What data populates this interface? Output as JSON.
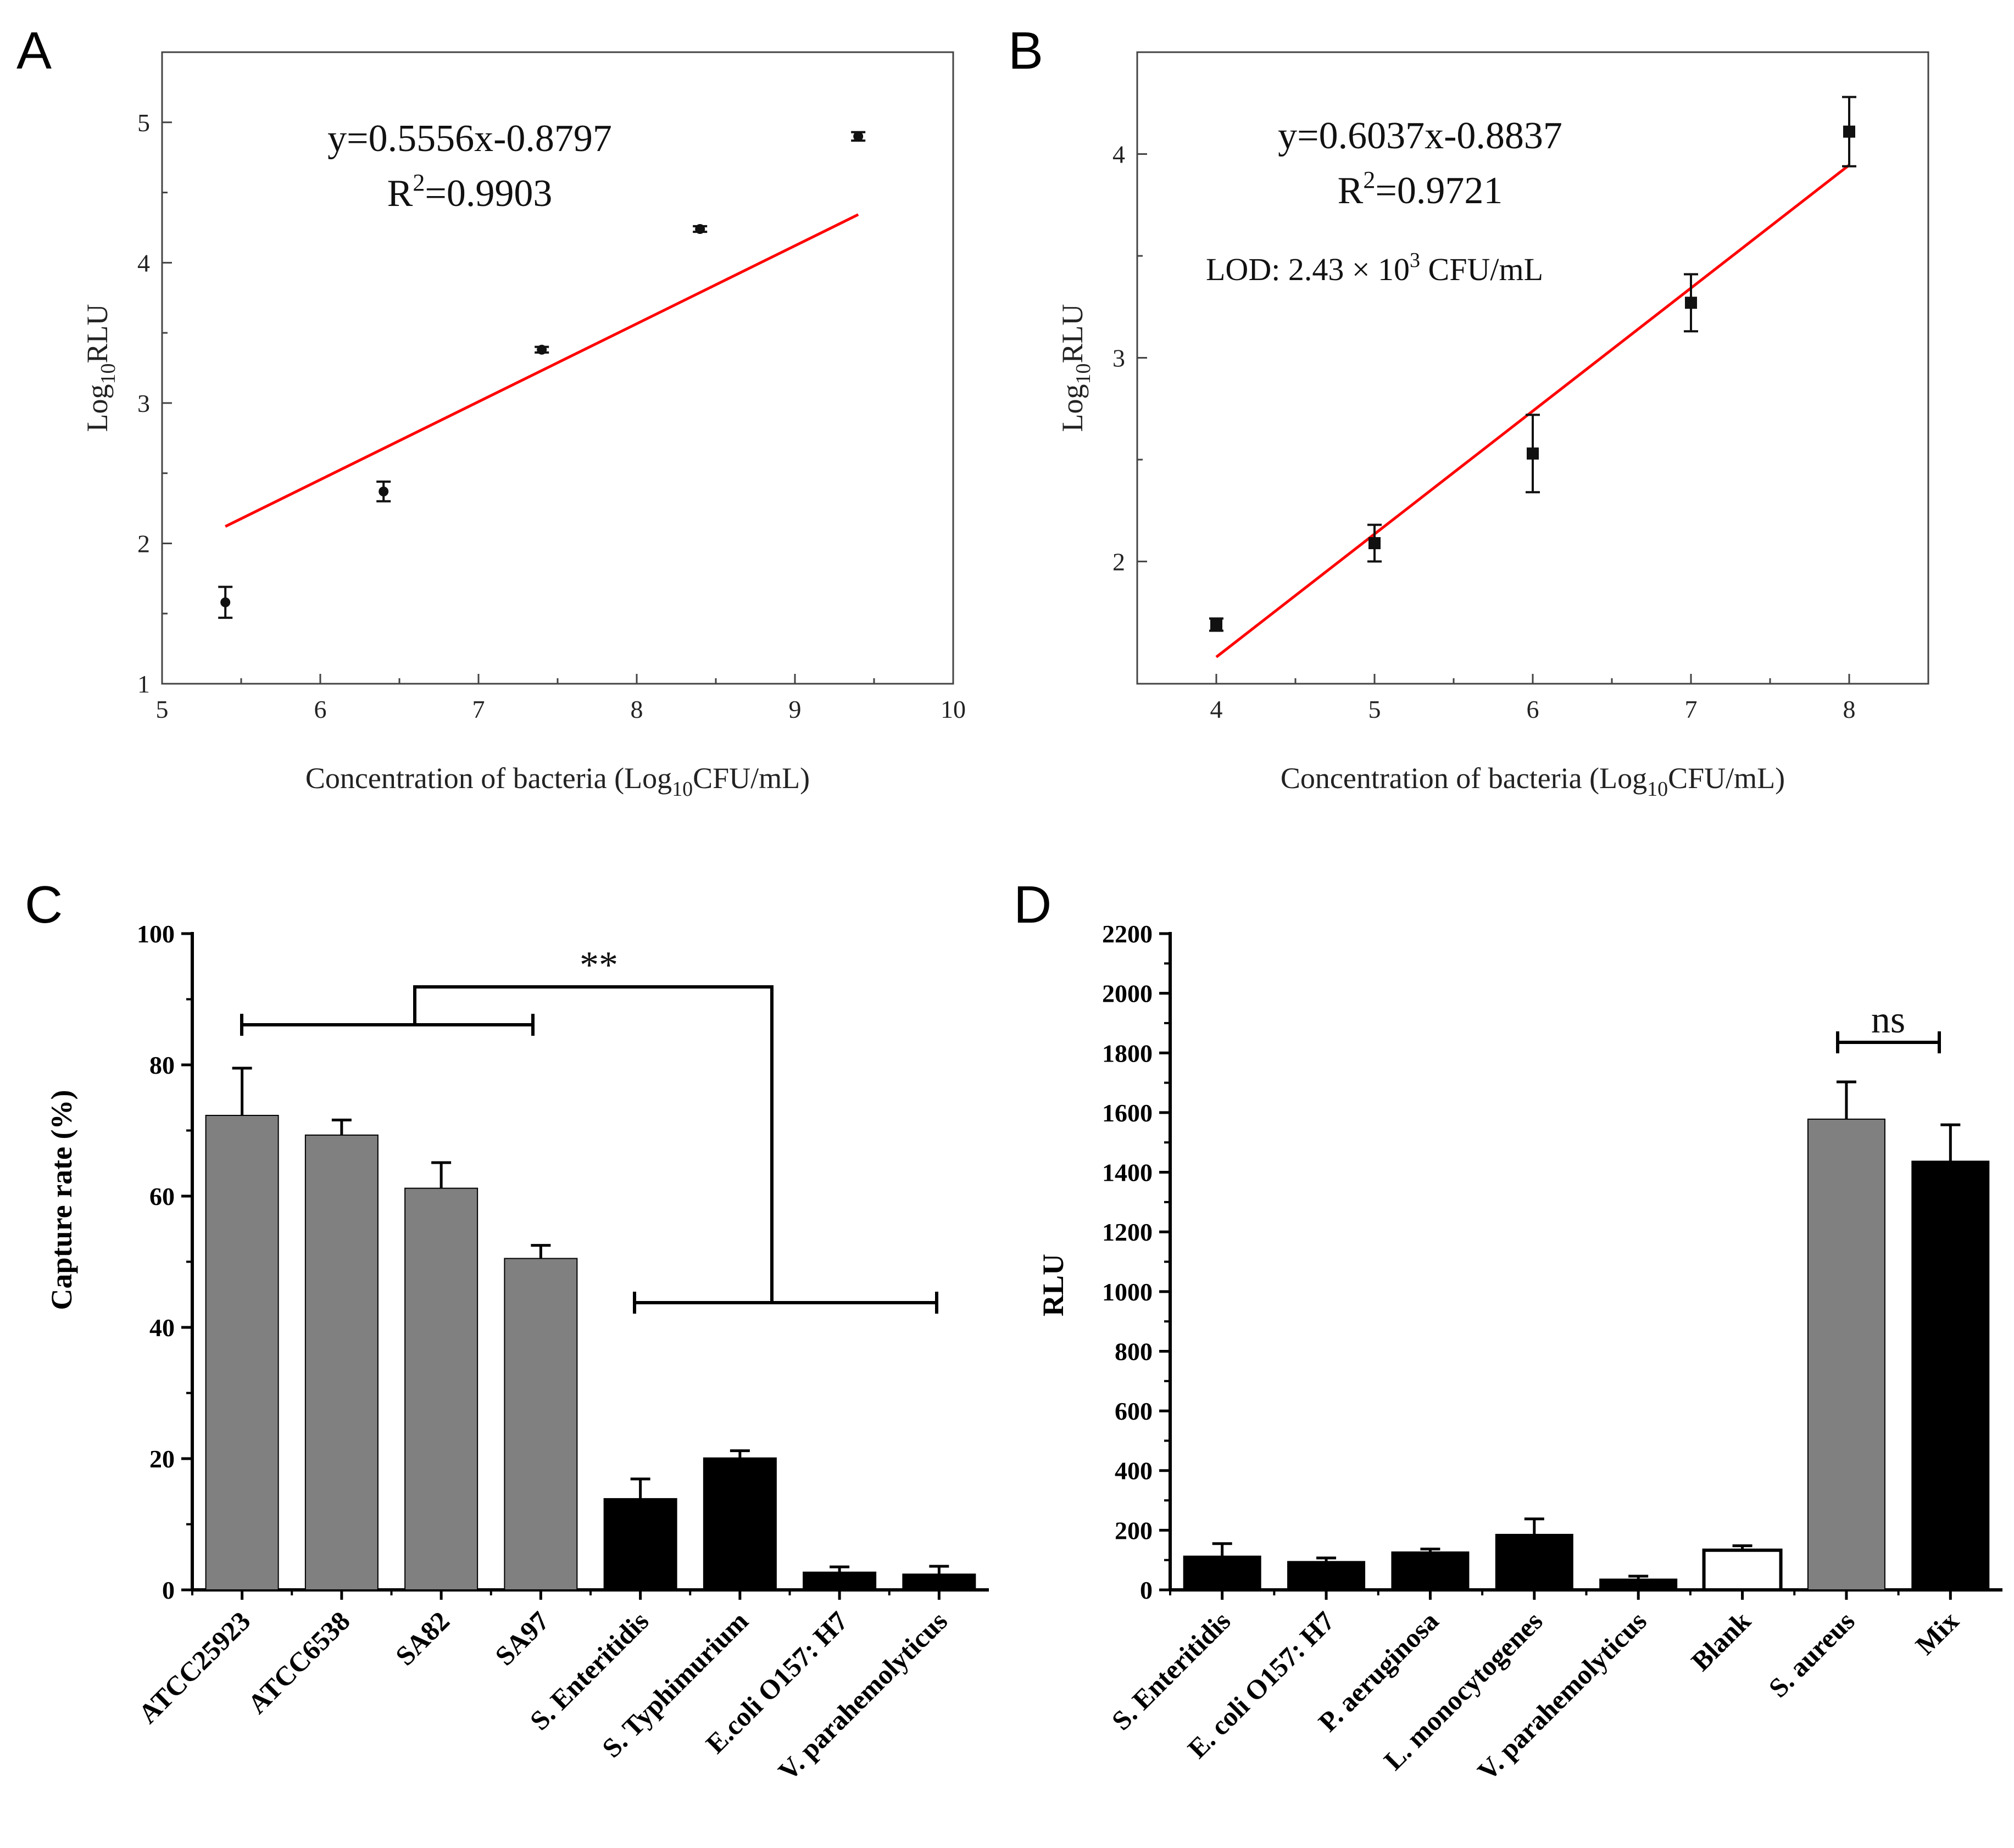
{
  "chart_data": [
    {
      "id": "A",
      "panel_label": "A",
      "type": "scatter",
      "x": [
        5.4,
        6.4,
        7.4,
        8.4,
        9.4
      ],
      "y": [
        1.58,
        2.37,
        3.38,
        4.24,
        4.9
      ],
      "yerr": [
        0.11,
        0.07,
        0.02,
        0.02,
        0.03
      ],
      "fit": {
        "slope": 0.5556,
        "intercept": -0.8797,
        "color": "#ff0000"
      },
      "equation": "y=0.5556x-0.8797",
      "r2_prefix": "R",
      "r2_sup": "2",
      "r2_value": "=0.9903",
      "xlim": [
        5,
        10
      ],
      "ylim": [
        1,
        5.5
      ],
      "xticks": [
        "5",
        "6",
        "7",
        "8",
        "9",
        "10"
      ],
      "yticks": [
        "1",
        "2",
        "3",
        "4",
        "5"
      ],
      "xlabel": {
        "main": "Concentration of bacteria (Log",
        "sub": "10",
        "tail": "CFU/mL)"
      },
      "ylabel": {
        "main": "Log",
        "sub": "10",
        "tail": "RLU"
      },
      "marker": "circle",
      "marker_color": "#111111"
    },
    {
      "id": "B",
      "panel_label": "B",
      "type": "scatter",
      "x": [
        4,
        5,
        6,
        7,
        8
      ],
      "y": [
        1.69,
        2.09,
        2.53,
        3.27,
        4.11
      ],
      "yerr": [
        0.03,
        0.09,
        0.19,
        0.14,
        0.17
      ],
      "fit": {
        "slope": 0.6037,
        "intercept": -0.8837,
        "color": "#ff0000"
      },
      "equation": "y=0.6037x-0.8837",
      "r2_prefix": "R",
      "r2_sup": "2",
      "r2_value": "=0.9721",
      "lod_text": "LOD: 2.43 × 10",
      "lod_sup": "3",
      "lod_unit": " CFU/mL",
      "xlim": [
        3.5,
        8.5
      ],
      "ylim": [
        1.4,
        4.5
      ],
      "xticks": [
        "4",
        "5",
        "6",
        "7",
        "8"
      ],
      "yticks": [
        "2",
        "3",
        "4"
      ],
      "xlabel": {
        "main": "Concentration of bacteria (Log",
        "sub": "10",
        "tail": "CFU/mL)"
      },
      "ylabel": {
        "main": "Log",
        "sub": "10",
        "tail": "RLU"
      },
      "marker": "square",
      "marker_color": "#111111"
    },
    {
      "id": "C",
      "panel_label": "C",
      "type": "bar",
      "categories": [
        "ATCC25923",
        "ATCC6538",
        "SA82",
        "SA97",
        "S. Enteritidis",
        "S. Typhimurium",
        "E.coli O157: H7",
        "V. parahemolyticus"
      ],
      "values": [
        72.3,
        69.3,
        61.2,
        50.5,
        13.9,
        20.1,
        2.7,
        2.4
      ],
      "errors": [
        7.2,
        2.3,
        3.9,
        2.0,
        3.0,
        1.1,
        0.8,
        1.2
      ],
      "colors": [
        "#808080",
        "#808080",
        "#808080",
        "#808080",
        "#000000",
        "#000000",
        "#000000",
        "#000000"
      ],
      "ylim": [
        0,
        100
      ],
      "yticks": [
        "0",
        "20",
        "40",
        "60",
        "80",
        "100"
      ],
      "ylabel": "Capture rate (%)",
      "significance": "**"
    },
    {
      "id": "D",
      "panel_label": "D",
      "type": "bar",
      "categories": [
        "S. Enteritidis",
        "E. coli O157: H7",
        "P. aeruginosa",
        "L. monocytogenes",
        "V. parahemolyticus",
        "Blank",
        "S. aureus",
        "Mix"
      ],
      "values": [
        113,
        95,
        127,
        186,
        36,
        133,
        1578,
        1437
      ],
      "errors": [
        42,
        12,
        10,
        52,
        10,
        15,
        125,
        122
      ],
      "colors": [
        "#000000",
        "#000000",
        "#000000",
        "#000000",
        "#000000",
        "#ffffff",
        "#808080",
        "#000000"
      ],
      "ylim": [
        0,
        2200
      ],
      "yticks": [
        "0",
        "200",
        "400",
        "600",
        "800",
        "1000",
        "1200",
        "1400",
        "1600",
        "1800",
        "2000",
        "2200"
      ],
      "ylabel": "RLU",
      "significance": "ns"
    }
  ]
}
